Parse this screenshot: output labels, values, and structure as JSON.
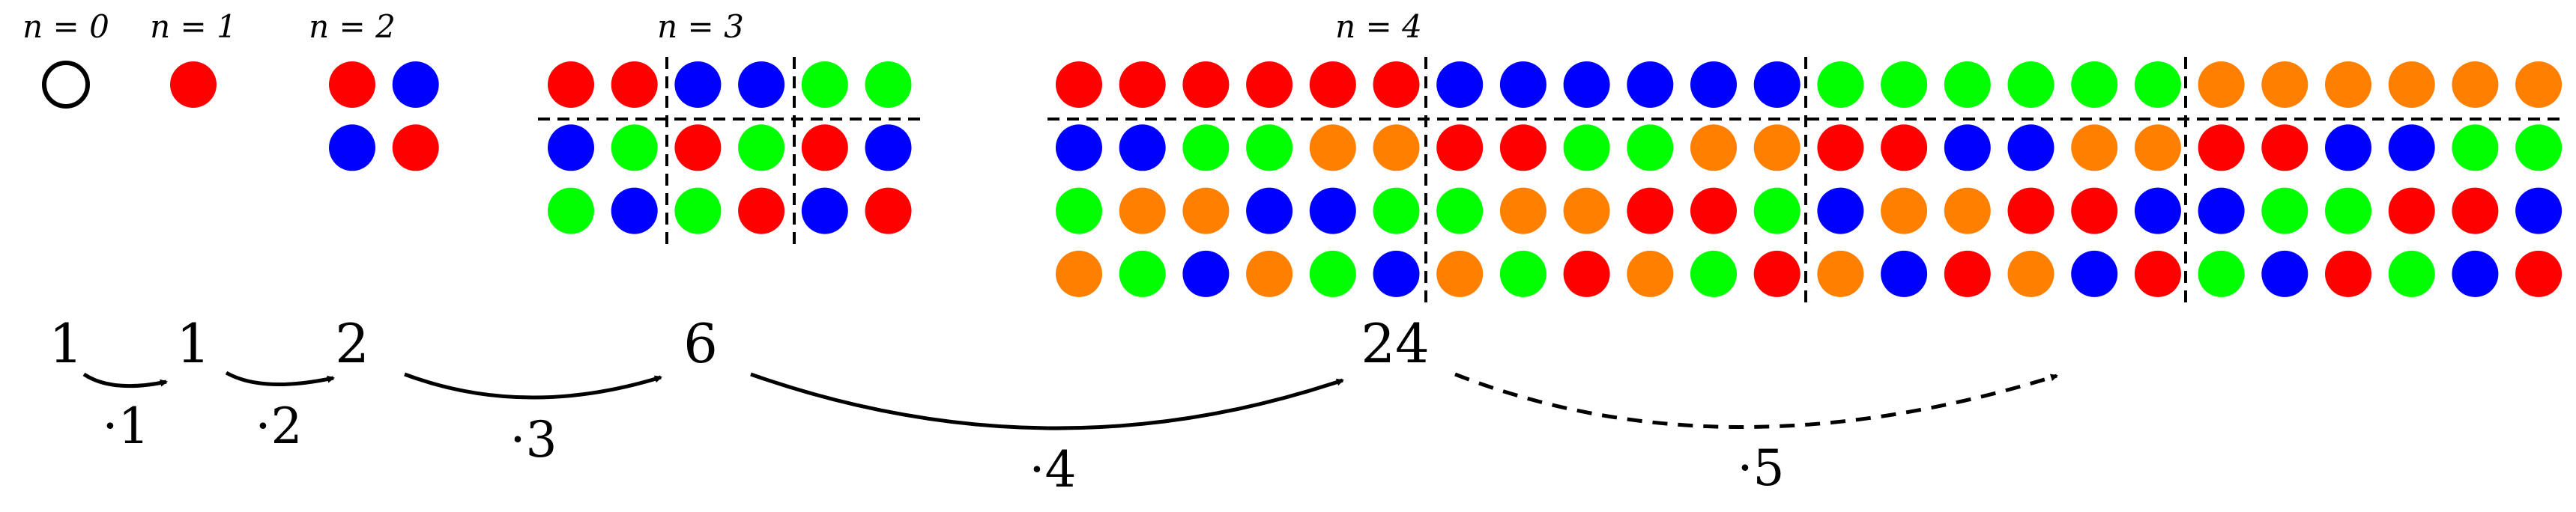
{
  "colors": {
    "red": "#ff0000",
    "blue": "#0000ff",
    "green": "#00ff00",
    "orange": "#ff8000",
    "empty_stroke": "#000000"
  },
  "stages": [
    {
      "label": "n = 0",
      "rows": []
    },
    {
      "label": "n = 1",
      "rows": [
        [
          "red"
        ]
      ]
    },
    {
      "label": "n = 2",
      "rows": [
        [
          "red",
          "blue"
        ],
        [
          "blue",
          "red"
        ]
      ]
    },
    {
      "label": "n = 3",
      "rows": [
        [
          "red",
          "red",
          "blue",
          "blue",
          "green",
          "green"
        ],
        [
          "blue",
          "green",
          "red",
          "green",
          "red",
          "blue"
        ],
        [
          "green",
          "blue",
          "green",
          "red",
          "blue",
          "red"
        ]
      ]
    },
    {
      "label": "n = 4",
      "rows": [
        [
          "red",
          "red",
          "red",
          "red",
          "red",
          "red",
          "blue",
          "blue",
          "blue",
          "blue",
          "blue",
          "blue",
          "green",
          "green",
          "green",
          "green",
          "green",
          "green",
          "orange",
          "orange",
          "orange",
          "orange",
          "orange",
          "orange"
        ],
        [
          "blue",
          "blue",
          "green",
          "green",
          "orange",
          "orange",
          "red",
          "red",
          "green",
          "green",
          "orange",
          "orange",
          "red",
          "red",
          "blue",
          "blue",
          "orange",
          "orange",
          "red",
          "red",
          "blue",
          "blue",
          "green",
          "green"
        ],
        [
          "green",
          "orange",
          "orange",
          "blue",
          "blue",
          "green",
          "green",
          "orange",
          "orange",
          "red",
          "red",
          "green",
          "blue",
          "orange",
          "orange",
          "red",
          "red",
          "blue",
          "blue",
          "green",
          "green",
          "red",
          "red",
          "blue"
        ],
        [
          "orange",
          "green",
          "blue",
          "orange",
          "green",
          "blue",
          "orange",
          "green",
          "red",
          "orange",
          "green",
          "red",
          "orange",
          "blue",
          "red",
          "orange",
          "blue",
          "red",
          "green",
          "blue",
          "red",
          "green",
          "blue",
          "red"
        ]
      ]
    }
  ],
  "sequence": [
    "1",
    "1",
    "2",
    "6",
    "24"
  ],
  "multipliers": [
    "·1",
    "·2",
    "·3",
    "·4",
    "·5"
  ]
}
